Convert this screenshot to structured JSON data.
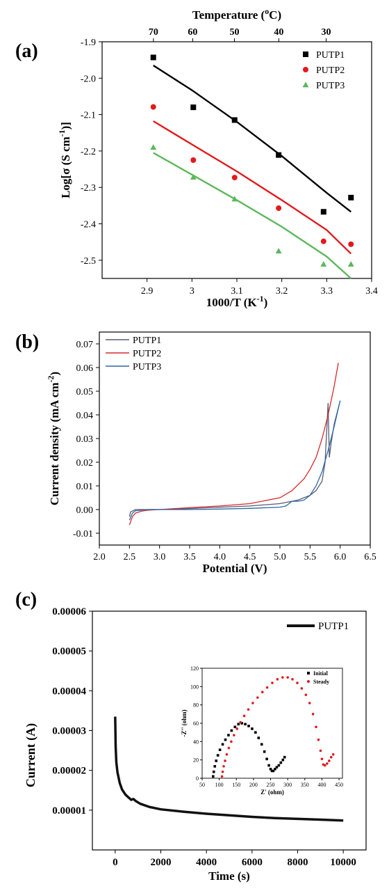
{
  "chart_data": [
    {
      "panel_label": "(a)",
      "type": "scatter",
      "xlabel": "1000/T (K",
      "xlabel_sup": "-1",
      "xlabel_suffix": ")",
      "ylabel": "Log[σ (S cm",
      "ylabel_sup": "-1",
      "ylabel_suffix": ")]",
      "top_xlabel": "Temperature  (",
      "top_xlabel_sup": "o",
      "top_xlabel_suffix": "C)",
      "xlim": [
        2.8,
        3.4
      ],
      "ylim": [
        -2.55,
        -1.9
      ],
      "xticks": [
        2.9,
        3.0,
        3.1,
        3.2,
        3.3,
        3.4
      ],
      "xtick_labels": [
        "2.9",
        "3",
        "3.1",
        "3.2",
        "3.3",
        "3.4"
      ],
      "yticks": [
        -1.9,
        -2.0,
        -2.1,
        -2.2,
        -2.3,
        -2.4,
        -2.5
      ],
      "ytick_labels": [
        "-1.9",
        "-2.0",
        "-2.1",
        "-2.2",
        "-2.3",
        "-2.4",
        "-2.5"
      ],
      "top_ticks": [
        70,
        60,
        50,
        40,
        30
      ],
      "top_tick_labels": [
        "70",
        "60",
        "50",
        "40",
        "30"
      ],
      "legend_position": "top-right",
      "series": [
        {
          "name": "PUTP1",
          "color": "#000000",
          "marker": "square",
          "x": [
            2.914,
            3.003,
            3.095,
            3.193,
            3.293,
            3.354
          ],
          "y": [
            -1.943,
            -2.08,
            -2.115,
            -2.211,
            -2.367,
            -2.328
          ],
          "fit_x": [
            2.914,
            3.0,
            3.1,
            3.2,
            3.3,
            3.354
          ],
          "fit_y": [
            -1.965,
            -2.033,
            -2.12,
            -2.214,
            -2.315,
            -2.367
          ]
        },
        {
          "name": "PUTP2",
          "color": "#e3191c",
          "marker": "circle",
          "x": [
            2.914,
            3.003,
            3.095,
            3.193,
            3.293,
            3.354
          ],
          "y": [
            -2.079,
            -2.225,
            -2.273,
            -2.357,
            -2.448,
            -2.456
          ],
          "fit_x": [
            2.914,
            3.0,
            3.1,
            3.2,
            3.3,
            3.354
          ],
          "fit_y": [
            -2.118,
            -2.182,
            -2.256,
            -2.335,
            -2.417,
            -2.482
          ]
        },
        {
          "name": "PUTP3",
          "color": "#5cb85c",
          "marker": "triangle",
          "x": [
            2.914,
            3.003,
            3.095,
            3.193,
            3.293,
            3.354
          ],
          "y": [
            -2.19,
            -2.272,
            -2.332,
            -2.475,
            -2.511,
            -2.511
          ],
          "fit_x": [
            2.914,
            3.0,
            3.1,
            3.2,
            3.3,
            3.354
          ],
          "fit_y": [
            -2.205,
            -2.265,
            -2.335,
            -2.408,
            -2.49,
            -2.55
          ]
        }
      ]
    },
    {
      "panel_label": "(b)",
      "type": "line",
      "xlabel": "Potential (V)",
      "ylabel": "Current density (mA cm",
      "ylabel_sup": "-2",
      "ylabel_suffix": ")",
      "xlim": [
        2.0,
        6.5
      ],
      "ylim": [
        -0.015,
        0.075
      ],
      "xticks": [
        2.0,
        2.5,
        3.0,
        3.5,
        4.0,
        4.5,
        5.0,
        5.5,
        6.0,
        6.5
      ],
      "xtick_labels": [
        "2.0",
        "2.5",
        "3.0",
        "3.5",
        "4.0",
        "4.5",
        "5.0",
        "5.5",
        "6.0",
        "6.5"
      ],
      "yticks": [
        -0.01,
        0.0,
        0.01,
        0.02,
        0.03,
        0.04,
        0.05,
        0.06,
        0.07
      ],
      "ytick_labels": [
        "-0.01",
        "0.00",
        "0.01",
        "0.02",
        "0.03",
        "0.04",
        "0.05",
        "0.06",
        "0.07"
      ],
      "legend_position": "top-left",
      "series": [
        {
          "name": "PUTP1",
          "color": "#555a72",
          "x": [
            2.5,
            2.52,
            2.6,
            2.8,
            3.0,
            3.5,
            4.0,
            4.5,
            5.0,
            5.3,
            5.5,
            5.6,
            5.7,
            5.75,
            5.8,
            5.82,
            5.85,
            5.9,
            6.0
          ],
          "y": [
            -0.003,
            -0.001,
            0.0,
            0.0,
            0.0,
            0.0004,
            0.001,
            0.0015,
            0.0025,
            0.004,
            0.006,
            0.008,
            0.012,
            0.02,
            0.045,
            0.022,
            0.028,
            0.036,
            0.046
          ]
        },
        {
          "name": "PUTP2",
          "color": "#d62a2a",
          "x": [
            2.5,
            2.55,
            2.6,
            2.7,
            2.8,
            3.0,
            3.5,
            4.0,
            4.5,
            5.0,
            5.2,
            5.4,
            5.5,
            5.6,
            5.7,
            5.8,
            5.9,
            5.97
          ],
          "y": [
            -0.0065,
            -0.003,
            -0.0015,
            -0.0007,
            -0.0003,
            0.0,
            0.0008,
            0.0015,
            0.0025,
            0.005,
            0.008,
            0.013,
            0.017,
            0.022,
            0.03,
            0.04,
            0.052,
            0.062
          ]
        },
        {
          "name": "PUTP3",
          "color": "#2a67a8",
          "x": [
            2.5,
            2.55,
            2.6,
            2.8,
            3.0,
            3.5,
            4.0,
            4.5,
            5.0,
            5.1,
            5.2,
            5.3,
            5.4,
            5.5,
            5.6,
            5.7,
            5.8,
            5.9,
            6.0
          ],
          "y": [
            -0.0045,
            -0.0015,
            -0.0005,
            0.0,
            0.0,
            0.0,
            0.0002,
            0.0005,
            0.001,
            0.0015,
            0.0035,
            0.0035,
            0.004,
            0.006,
            0.01,
            0.016,
            0.025,
            0.035,
            0.046
          ]
        }
      ]
    },
    {
      "panel_label": "(c)",
      "type": "line",
      "xlabel": "Time (s)",
      "ylabel": "Current  (A)",
      "xlim": [
        -1000,
        11000
      ],
      "ylim": [
        0.0,
        6e-05
      ],
      "xticks": [
        0,
        2000,
        4000,
        6000,
        8000,
        10000
      ],
      "xtick_labels": [
        "0",
        "2000",
        "4000",
        "6000",
        "8000",
        "10000"
      ],
      "yticks": [
        1e-05,
        2e-05,
        3e-05,
        4e-05,
        5e-05,
        6e-05
      ],
      "ytick_labels": [
        "0.00001",
        "0.00002",
        "0.00003",
        "0.00004",
        "0.00005",
        "0.00006"
      ],
      "legend_position": "top-right",
      "series": [
        {
          "name": "PUTP1",
          "color": "#111111",
          "x": [
            0,
            20,
            50,
            100,
            200,
            300,
            450,
            600,
            700,
            800,
            900,
            1100,
            1500,
            2000,
            3000,
            4000,
            5000,
            6000,
            7000,
            8000,
            9000,
            10000
          ],
          "y": [
            3.35e-05,
            2.6e-05,
            2.2e-05,
            1.95e-05,
            1.68e-05,
            1.52e-05,
            1.39e-05,
            1.31e-05,
            1.26e-05,
            1.28e-05,
            1.23e-05,
            1.16e-05,
            1.08e-05,
            1.02e-05,
            9.6e-06,
            9.1e-06,
            8.7e-06,
            8.3e-06,
            8e-06,
            7.8e-06,
            7.6e-06,
            7.4e-06
          ]
        }
      ],
      "inset": {
        "type": "scatter",
        "xlabel": "Z' (ohm)",
        "ylabel": "-Z'' (ohm)",
        "xlim": [
          50,
          460
        ],
        "ylim": [
          0,
          120
        ],
        "xticks": [
          50,
          100,
          150,
          200,
          250,
          300,
          350,
          400,
          450
        ],
        "xtick_labels": [
          "50",
          "100",
          "150",
          "200",
          "250",
          "300",
          "350",
          "400",
          "450"
        ],
        "yticks": [
          0,
          20,
          40,
          60,
          80,
          100,
          120
        ],
        "ytick_labels": [
          "0",
          "20",
          "40",
          "60",
          "80",
          "100",
          "120"
        ],
        "legend_position": "top-right",
        "series": [
          {
            "name": "Initial",
            "color": "#000000",
            "marker": "square",
            "x": [
              82,
              84,
              87,
              91,
              96,
              102,
              110,
              118,
              127,
              136,
              146,
              156,
              166,
              176,
              186,
              196,
              206,
              215,
              224,
              232,
              239,
              245,
              250,
              254,
              258,
              263,
              268,
              274,
              280,
              286,
              291
            ],
            "y": [
              2,
              7,
              13,
              19,
              25,
              31,
              37,
              42,
              47,
              52,
              56,
              59,
              60,
              59,
              57,
              54,
              50,
              44,
              37,
              29,
              21,
              14,
              10,
              8,
              8,
              10,
              12,
              14,
              17,
              20,
              23
            ]
          },
          {
            "name": "Steady",
            "color": "#e3191c",
            "marker": "circle",
            "x": [
              108,
              110,
              113,
              117,
              122,
              128,
              135,
              143,
              152,
              162,
              173,
              185,
              198,
              212,
              226,
              240,
              255,
              270,
              285,
              300,
              314,
              328,
              341,
              353,
              364,
              374,
              383,
              390,
              396,
              400,
              404,
              409,
              415,
              421,
              427,
              433
            ],
            "y": [
              2,
              7,
              13,
              19,
              26,
              33,
              40,
              47,
              54,
              61,
              68,
              75,
              82,
              88,
              94,
              99,
              104,
              108,
              110,
              110,
              108,
              104,
              98,
              91,
              82,
              70,
              56,
              42,
              30,
              21,
              15,
              14,
              16,
              19,
              23,
              26
            ]
          }
        ]
      }
    }
  ]
}
